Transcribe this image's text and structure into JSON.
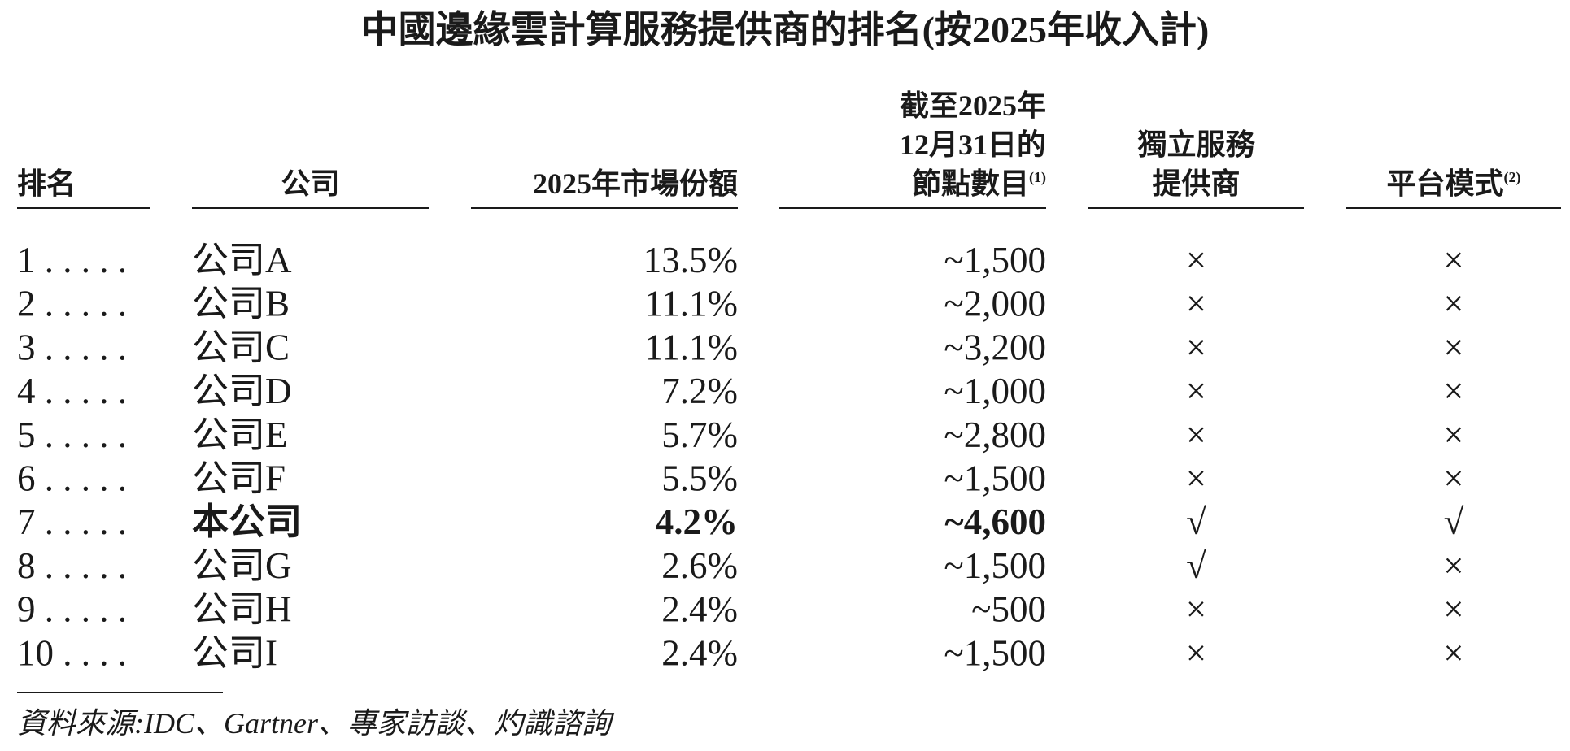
{
  "title": "中國邊緣雲計算服務提供商的排名(按2025年收入計)",
  "table": {
    "headers": [
      {
        "lines": [
          "排名"
        ]
      },
      {
        "lines": [
          "公司"
        ]
      },
      {
        "lines": [
          "2025年市場份額"
        ]
      },
      {
        "lines": [
          "截至2025年",
          "12月31日的",
          "節點數目"
        ],
        "note": "(1)"
      },
      {
        "lines": [
          "獨立服務",
          "提供商"
        ]
      },
      {
        "lines": [
          "平台模式"
        ],
        "note": "(2)"
      }
    ],
    "rows": [
      {
        "cells": [
          "1 . . . . .",
          "公司A",
          "13.5%",
          "~1,500",
          "×",
          "×"
        ]
      },
      {
        "cells": [
          "2 . . . . .",
          "公司B",
          "11.1%",
          "~2,000",
          "×",
          "×"
        ]
      },
      {
        "cells": [
          "3 . . . . .",
          "公司C",
          "11.1%",
          "~3,200",
          "×",
          "×"
        ]
      },
      {
        "cells": [
          "4 . . . . .",
          "公司D",
          "7.2%",
          "~1,000",
          "×",
          "×"
        ]
      },
      {
        "cells": [
          "5 . . . . .",
          "公司E",
          "5.7%",
          "~2,800",
          "×",
          "×"
        ]
      },
      {
        "cells": [
          "6 . . . . .",
          "公司F",
          "5.5%",
          "~1,500",
          "×",
          "×"
        ]
      },
      {
        "cells": [
          "7 . . . . .",
          "本公司",
          "4.2%",
          "~4,600",
          "√",
          "√"
        ],
        "bold": true
      },
      {
        "cells": [
          "8 . . . . .",
          "公司G",
          "2.6%",
          "~1,500",
          "√",
          "×"
        ]
      },
      {
        "cells": [
          "9 . . . . .",
          "公司H",
          "2.4%",
          "~500",
          "×",
          "×"
        ]
      },
      {
        "cells": [
          "10 . . . .",
          "公司I",
          "2.4%",
          "~1,500",
          "×",
          "×"
        ]
      }
    ]
  },
  "source": "資料來源:IDC、Gartner、專家訪談、灼識諮詢"
}
